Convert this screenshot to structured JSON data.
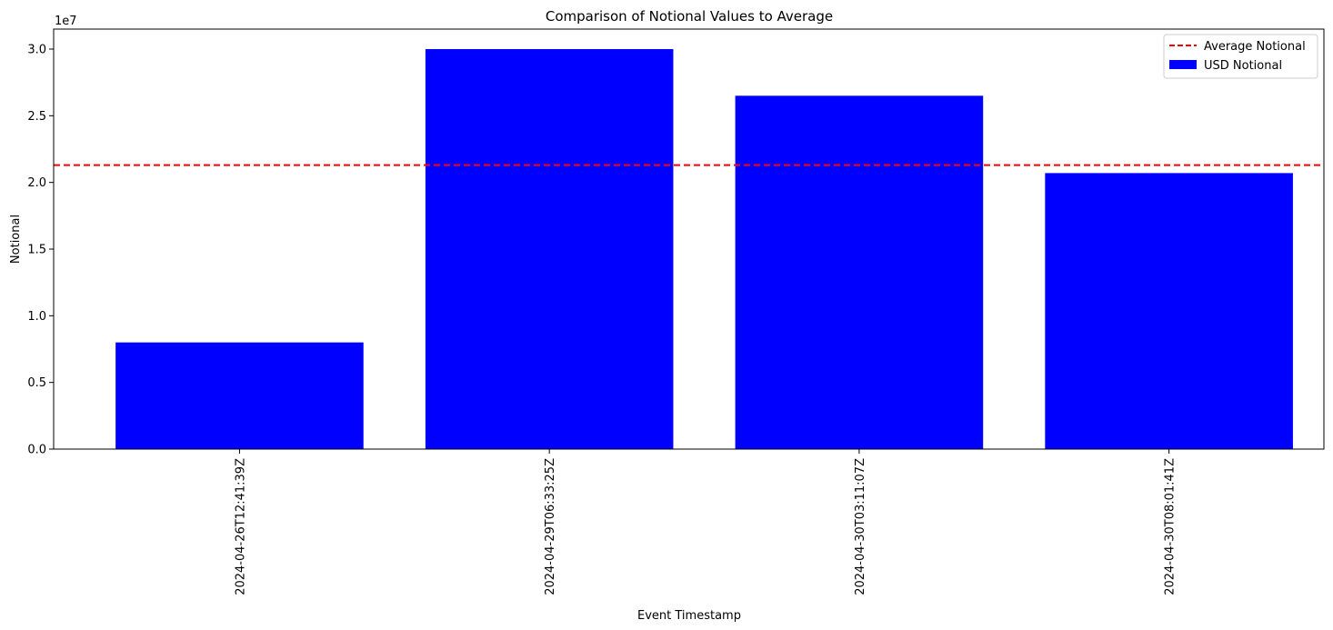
{
  "chart_data": {
    "type": "bar",
    "title": "Comparison of Notional Values to Average",
    "xlabel": "Event Timestamp",
    "ylabel": "Notional",
    "y_offset_label": "1e7",
    "categories": [
      "2024-04-26T12:41:39Z",
      "2024-04-29T06:33:25Z",
      "2024-04-30T03:11:07Z",
      "2024-04-30T08:01:41Z"
    ],
    "series": [
      {
        "name": "USD Notional",
        "color": "#0000ff",
        "values": [
          8000000,
          30000000,
          26500000,
          20700000
        ]
      }
    ],
    "average_line": {
      "name": "Average Notional",
      "value": 21300000,
      "color": "#ff0000",
      "style": "dashed"
    },
    "ylim": [
      0,
      31500000
    ],
    "yticks": [
      0,
      5000000,
      10000000,
      15000000,
      20000000,
      25000000,
      30000000
    ],
    "ytick_labels": [
      "0.0",
      "0.5",
      "1.0",
      "1.5",
      "2.0",
      "2.5",
      "3.0"
    ],
    "legend_position": "top-right",
    "grid": false
  }
}
